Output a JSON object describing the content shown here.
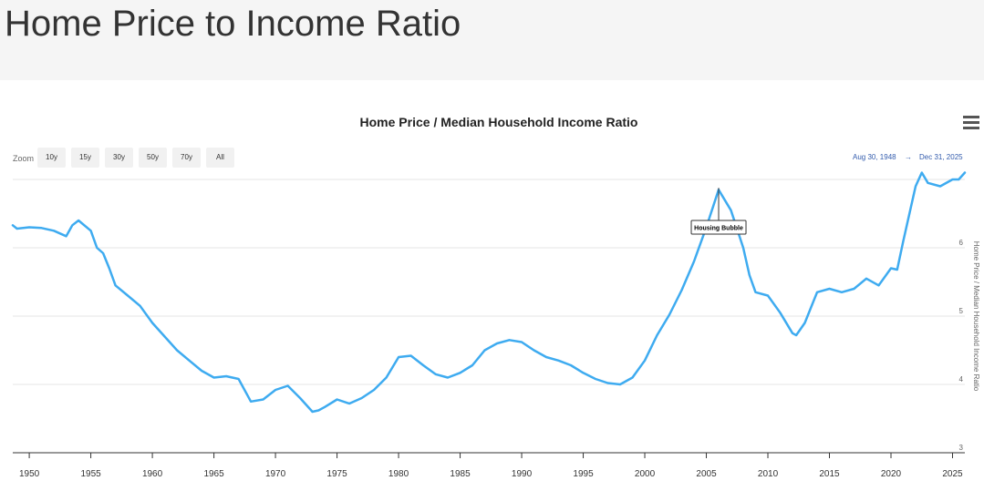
{
  "page": {
    "title": "Home Price to Income Ratio"
  },
  "toolbar": {
    "menu_icon": "hamburger-menu-icon",
    "zoom_label": "Zoom",
    "zoom_buttons": [
      "10y",
      "15y",
      "30y",
      "50y",
      "70y",
      "All"
    ],
    "range_from": "Aug 30, 1948",
    "range_arrow": "→",
    "range_to": "Dec 31, 2025"
  },
  "colors": {
    "series": "#3eabf0",
    "header_bg": "#f5f5f5"
  },
  "chart_data": {
    "type": "line",
    "title": "Home Price / Median Household Income Ratio",
    "ylabel": "Home Price / Median Household Income Ratio",
    "xlabel": "",
    "xlim": [
      1948.66,
      2026.0
    ],
    "ylim": [
      3,
      7
    ],
    "x_ticks": [
      1950,
      1955,
      1960,
      1965,
      1970,
      1975,
      1980,
      1985,
      1990,
      1995,
      2000,
      2005,
      2010,
      2015,
      2020,
      2025
    ],
    "y_ticks": [
      3,
      4,
      5,
      6,
      7
    ],
    "y_tick_labels": [
      "3",
      "4",
      "5",
      "6",
      ""
    ],
    "grid": "horizontal",
    "legend": "none",
    "annotations": [
      {
        "text": "Housing Bubble",
        "x": 2006.0,
        "y": 6.85
      }
    ],
    "series": [
      {
        "x": [
          1948.66,
          1949.0,
          1950.0,
          1951.0,
          1952.0,
          1953.0,
          1953.5,
          1954.0,
          1955.0,
          1955.5,
          1956.0,
          1956.5,
          1957.0,
          1958.0,
          1959.0,
          1960.0,
          1961.0,
          1962.0,
          1963.0,
          1964.0,
          1965.0,
          1966.0,
          1967.0,
          1968.0,
          1969.0,
          1970.0,
          1971.0,
          1972.0,
          1973.0,
          1973.5,
          1974.0,
          1975.0,
          1976.0,
          1977.0,
          1978.0,
          1979.0,
          1980.0,
          1981.0,
          1982.0,
          1983.0,
          1984.0,
          1985.0,
          1986.0,
          1987.0,
          1988.0,
          1989.0,
          1990.0,
          1991.0,
          1992.0,
          1993.0,
          1994.0,
          1995.0,
          1996.0,
          1997.0,
          1998.0,
          1999.0,
          2000.0,
          2001.0,
          2002.0,
          2003.0,
          2004.0,
          2005.0,
          2006.0,
          2007.0,
          2008.0,
          2008.5,
          2009.0,
          2010.0,
          2011.0,
          2012.0,
          2012.3,
          2013.0,
          2014.0,
          2015.0,
          2016.0,
          2017.0,
          2018.0,
          2019.0,
          2020.0,
          2020.5,
          2021.0,
          2022.0,
          2022.5,
          2023.0,
          2024.0,
          2025.0,
          2025.5,
          2026.0
        ],
        "y": [
          6.33,
          6.28,
          6.3,
          6.29,
          6.25,
          6.17,
          6.33,
          6.4,
          6.25,
          6.0,
          5.92,
          5.7,
          5.45,
          5.3,
          5.15,
          4.9,
          4.7,
          4.5,
          4.35,
          4.2,
          4.1,
          4.12,
          4.08,
          3.75,
          3.78,
          3.92,
          3.98,
          3.8,
          3.6,
          3.62,
          3.67,
          3.78,
          3.72,
          3.8,
          3.92,
          4.1,
          4.4,
          4.42,
          4.28,
          4.15,
          4.1,
          4.17,
          4.28,
          4.5,
          4.6,
          4.65,
          4.62,
          4.5,
          4.4,
          4.35,
          4.28,
          4.17,
          4.08,
          4.02,
          4.0,
          4.1,
          4.35,
          4.72,
          5.02,
          5.38,
          5.8,
          6.3,
          6.85,
          6.55,
          6.0,
          5.6,
          5.35,
          5.3,
          5.05,
          4.75,
          4.72,
          4.9,
          5.35,
          5.4,
          5.35,
          5.4,
          5.55,
          5.45,
          5.7,
          5.68,
          6.1,
          6.9,
          7.1,
          6.95,
          6.9,
          7.0,
          7.0,
          7.1
        ]
      }
    ]
  }
}
